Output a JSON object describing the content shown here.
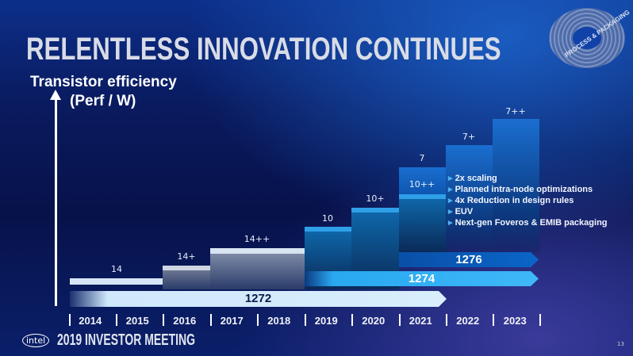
{
  "title": "RELENTLESS INNOVATION CONTINUES",
  "badge": "PROCESS & PACKAGING",
  "y_axis": {
    "line1": "Transistor efficiency",
    "line2": "(Perf / W)"
  },
  "nodes": [
    {
      "label": "14",
      "years": [
        "2014",
        "2015"
      ]
    },
    {
      "label": "14+",
      "years": [
        "2016"
      ]
    },
    {
      "label": "14++",
      "years": [
        "2017",
        "2018"
      ]
    },
    {
      "label": "10",
      "years": [
        "2019"
      ]
    },
    {
      "label": "10+",
      "years": [
        "2020"
      ]
    },
    {
      "label": "10++",
      "years": [
        "2021"
      ]
    },
    {
      "label": "7",
      "years": [
        "2021"
      ]
    },
    {
      "label": "7+",
      "years": [
        "2022"
      ]
    },
    {
      "label": "7++",
      "years": [
        "2023"
      ]
    }
  ],
  "processes": [
    {
      "label": "1276",
      "color": "#0a5fc0"
    },
    {
      "label": "1274",
      "color": "#29a8f0"
    },
    {
      "label": "1272",
      "color": "#cfe8fb"
    }
  ],
  "bullets": [
    "2x scaling",
    "Planned intra-node optimizations",
    "4x Reduction in design rules",
    "EUV",
    "Next-gen Foveros & EMIB packaging"
  ],
  "years": [
    "2014",
    "2015",
    "2016",
    "2017",
    "2018",
    "2019",
    "2020",
    "2021",
    "2022",
    "2023"
  ],
  "footer": {
    "logo": "intel",
    "event": "2019 INVESTOR MEETING",
    "page": "13"
  }
}
